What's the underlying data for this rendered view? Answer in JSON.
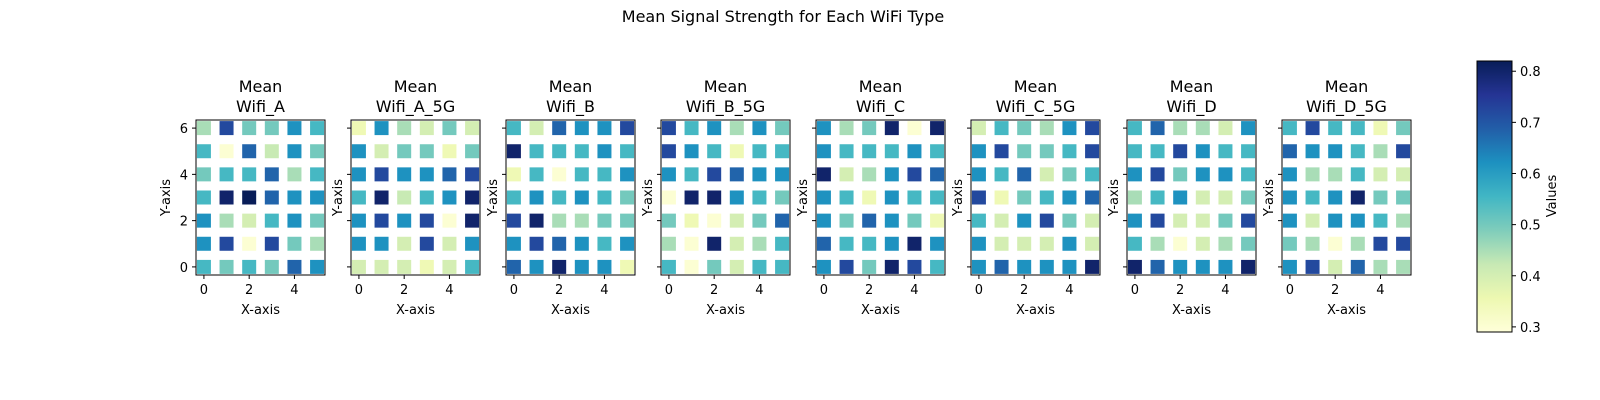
{
  "figure_title": "Mean Signal Strength for Each WiFi Type",
  "colorbar_label": "Values",
  "chart_data": {
    "type": "heatmap",
    "suptitle": "Mean Signal Strength for Each WiFi Type",
    "colormap": "YlGnBu",
    "color_range": [
      0.29,
      0.82
    ],
    "colorbar_ticks": [
      "0.3",
      "0.4",
      "0.5",
      "0.6",
      "0.7",
      "0.8"
    ],
    "xlabel": "X-axis",
    "ylabel": "Y-axis",
    "xlim": [
      -0.35,
      5.35
    ],
    "ylim": [
      -0.35,
      6.35
    ],
    "xticks": [
      "0",
      "2",
      "4"
    ],
    "yticks": [
      "0",
      "2",
      "4",
      "6"
    ],
    "grid_note": "values at integer x 0-5 and y 0-6; rows listed from y=6 down to y=0",
    "panels": [
      {
        "title_line1": "Mean",
        "title_line2": "Wifi_A",
        "values": [
          [
            0.45,
            0.72,
            0.5,
            0.5,
            0.62,
            0.55
          ],
          [
            0.55,
            0.3,
            0.68,
            0.42,
            0.62,
            0.5
          ],
          [
            0.5,
            0.55,
            0.55,
            0.68,
            0.45,
            0.55
          ],
          [
            0.55,
            0.8,
            0.82,
            0.68,
            0.62,
            0.62
          ],
          [
            0.62,
            0.45,
            0.4,
            0.55,
            0.62,
            0.5
          ],
          [
            0.62,
            0.72,
            0.3,
            0.72,
            0.5,
            0.45
          ],
          [
            0.55,
            0.5,
            0.55,
            0.5,
            0.68,
            0.62
          ]
        ]
      },
      {
        "title_line1": "Mean",
        "title_line2": "Wifi_A_5G",
        "values": [
          [
            0.35,
            0.62,
            0.45,
            0.4,
            0.5,
            0.4
          ],
          [
            0.62,
            0.4,
            0.5,
            0.5,
            0.35,
            0.5
          ],
          [
            0.62,
            0.72,
            0.62,
            0.62,
            0.68,
            0.72
          ],
          [
            0.55,
            0.8,
            0.42,
            0.55,
            0.62,
            0.8
          ],
          [
            0.62,
            0.72,
            0.62,
            0.72,
            0.3,
            0.8
          ],
          [
            0.62,
            0.62,
            0.4,
            0.72,
            0.4,
            0.62
          ],
          [
            0.4,
            0.4,
            0.4,
            0.35,
            0.4,
            0.55
          ]
        ]
      },
      {
        "title_line1": "Mean",
        "title_line2": "Wifi_B",
        "values": [
          [
            0.55,
            0.4,
            0.68,
            0.62,
            0.62,
            0.72
          ],
          [
            0.8,
            0.55,
            0.55,
            0.55,
            0.62,
            0.55
          ],
          [
            0.35,
            0.55,
            0.3,
            0.55,
            0.55,
            0.62
          ],
          [
            0.55,
            0.62,
            0.55,
            0.62,
            0.55,
            0.5
          ],
          [
            0.72,
            0.8,
            0.45,
            0.45,
            0.5,
            0.5
          ],
          [
            0.62,
            0.72,
            0.68,
            0.62,
            0.55,
            0.62
          ],
          [
            0.68,
            0.62,
            0.8,
            0.62,
            0.62,
            0.35
          ]
        ]
      },
      {
        "title_line1": "Mean",
        "title_line2": "Wifi_B_5G",
        "values": [
          [
            0.72,
            0.55,
            0.62,
            0.45,
            0.62,
            0.5
          ],
          [
            0.72,
            0.62,
            0.55,
            0.35,
            0.55,
            0.55
          ],
          [
            0.62,
            0.55,
            0.72,
            0.68,
            0.62,
            0.62
          ],
          [
            0.3,
            0.8,
            0.8,
            0.62,
            0.55,
            0.5
          ],
          [
            0.5,
            0.35,
            0.3,
            0.4,
            0.5,
            0.68
          ],
          [
            0.45,
            0.3,
            0.8,
            0.4,
            0.45,
            0.55
          ],
          [
            0.55,
            0.3,
            0.5,
            0.4,
            0.55,
            0.55
          ]
        ]
      },
      {
        "title_line1": "Mean",
        "title_line2": "Wifi_C",
        "values": [
          [
            0.62,
            0.45,
            0.5,
            0.8,
            0.3,
            0.8
          ],
          [
            0.62,
            0.55,
            0.55,
            0.55,
            0.62,
            0.55
          ],
          [
            0.8,
            0.4,
            0.45,
            0.62,
            0.72,
            0.68
          ],
          [
            0.62,
            0.55,
            0.35,
            0.62,
            0.55,
            0.55
          ],
          [
            0.62,
            0.5,
            0.68,
            0.62,
            0.5,
            0.35
          ],
          [
            0.68,
            0.55,
            0.55,
            0.62,
            0.8,
            0.62
          ],
          [
            0.62,
            0.72,
            0.5,
            0.8,
            0.72,
            0.55
          ]
        ]
      },
      {
        "title_line1": "Mean",
        "title_line2": "Wifi_C_5G",
        "values": [
          [
            0.4,
            0.55,
            0.5,
            0.45,
            0.62,
            0.72
          ],
          [
            0.62,
            0.72,
            0.5,
            0.5,
            0.55,
            0.72
          ],
          [
            0.62,
            0.55,
            0.68,
            0.4,
            0.5,
            0.55
          ],
          [
            0.72,
            0.35,
            0.5,
            0.55,
            0.62,
            0.68
          ],
          [
            0.55,
            0.4,
            0.62,
            0.72,
            0.5,
            0.4
          ],
          [
            0.62,
            0.4,
            0.4,
            0.4,
            0.62,
            0.4
          ],
          [
            0.62,
            0.68,
            0.62,
            0.62,
            0.62,
            0.8
          ]
        ]
      },
      {
        "title_line1": "Mean",
        "title_line2": "Wifi_D",
        "values": [
          [
            0.55,
            0.68,
            0.45,
            0.45,
            0.4,
            0.62
          ],
          [
            0.55,
            0.55,
            0.72,
            0.62,
            0.55,
            0.55
          ],
          [
            0.62,
            0.72,
            0.5,
            0.62,
            0.62,
            0.55
          ],
          [
            0.45,
            0.55,
            0.62,
            0.4,
            0.4,
            0.5
          ],
          [
            0.62,
            0.72,
            0.4,
            0.4,
            0.5,
            0.72
          ],
          [
            0.55,
            0.45,
            0.3,
            0.4,
            0.45,
            0.5
          ],
          [
            0.8,
            0.68,
            0.62,
            0.62,
            0.62,
            0.8
          ]
        ]
      },
      {
        "title_line1": "Mean",
        "title_line2": "Wifi_D_5G",
        "values": [
          [
            0.55,
            0.72,
            0.55,
            0.55,
            0.35,
            0.5
          ],
          [
            0.68,
            0.62,
            0.62,
            0.55,
            0.45,
            0.72
          ],
          [
            0.62,
            0.45,
            0.45,
            0.55,
            0.4,
            0.4
          ],
          [
            0.62,
            0.55,
            0.62,
            0.8,
            0.5,
            0.5
          ],
          [
            0.62,
            0.4,
            0.62,
            0.62,
            0.55,
            0.45
          ],
          [
            0.5,
            0.45,
            0.3,
            0.45,
            0.72,
            0.72
          ],
          [
            0.62,
            0.72,
            0.4,
            0.68,
            0.45,
            0.45
          ]
        ]
      }
    ]
  }
}
